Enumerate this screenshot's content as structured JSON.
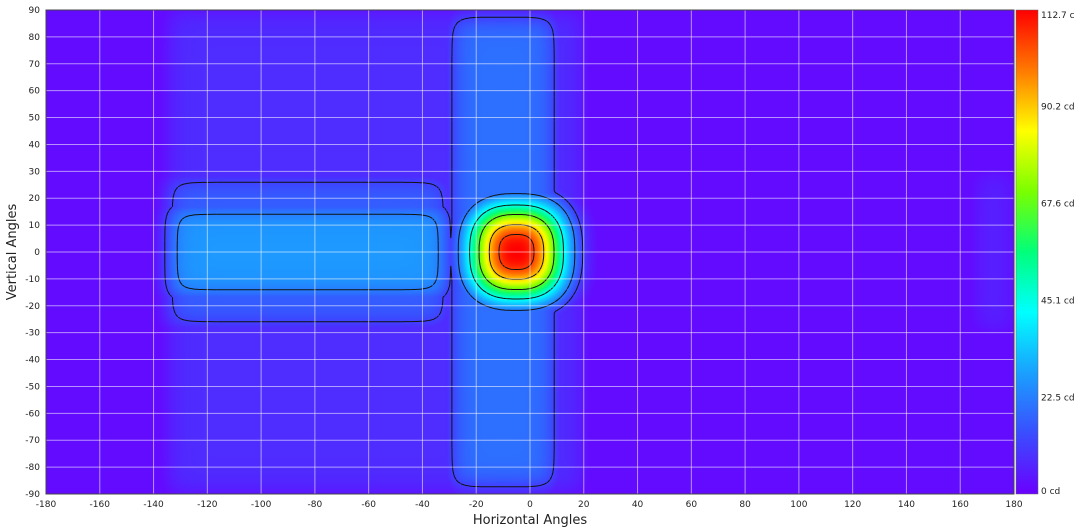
{
  "chart_data": {
    "type": "heatmap",
    "title": "",
    "xlabel": "Horizontal Angles",
    "ylabel": "Vertical Angles",
    "xlim": [
      -180,
      180
    ],
    "ylim": [
      -90,
      90
    ],
    "x_ticks": [
      "-180",
      "-160",
      "-140",
      "-120",
      "-100",
      "-80",
      "-60",
      "-40",
      "-20",
      "0",
      "20",
      "40",
      "60",
      "80",
      "100",
      "120",
      "140",
      "160",
      "180"
    ],
    "y_ticks": [
      "90",
      "80",
      "70",
      "60",
      "50",
      "40",
      "30",
      "20",
      "10",
      "0",
      "-10",
      "-20",
      "-30",
      "-40",
      "-50",
      "-60",
      "-70",
      "-80",
      "-90"
    ],
    "grid": true,
    "colorbar": {
      "placement": "right",
      "min": 0,
      "max": 112.7,
      "unit": "cd",
      "labels": [
        "112.7 cd",
        "90.2 cd",
        "67.6 cd",
        "45.1 cd",
        "22.5 cd",
        "0 cd"
      ],
      "label_values": [
        112.7,
        90.2,
        67.6,
        45.1,
        22.5,
        0
      ],
      "colors": [
        "#6a00ff",
        "#3a4dff",
        "#1aa0ff",
        "#00ffff",
        "#00ff7a",
        "#7aff00",
        "#ffff00",
        "#ff7a00",
        "#ff0000"
      ]
    },
    "intensity_features": [
      {
        "kind": "peak",
        "x_center": -5,
        "y_center": 0,
        "x_width": 18,
        "y_width": 18,
        "value": 112.7
      },
      {
        "kind": "vertical_band",
        "x_min": -30,
        "x_max": 10,
        "y_min": -88,
        "y_max": 88,
        "value": 20
      },
      {
        "kind": "horizontal_band",
        "x_min": -135,
        "x_max": -30,
        "y_min": -18,
        "y_max": 18,
        "value": 27
      },
      {
        "kind": "horizontal_band_outer",
        "x_min": -135,
        "x_max": -30,
        "y_min": -28,
        "y_max": 28,
        "value": 17
      },
      {
        "kind": "background_region",
        "x_min": -135,
        "x_max": 20,
        "y_min": -90,
        "y_max": 90,
        "value": 8
      },
      {
        "kind": "background_region",
        "x_min": 165,
        "x_max": 180,
        "y_min": -30,
        "y_max": 30,
        "value": 6
      }
    ],
    "background_value": 2
  }
}
